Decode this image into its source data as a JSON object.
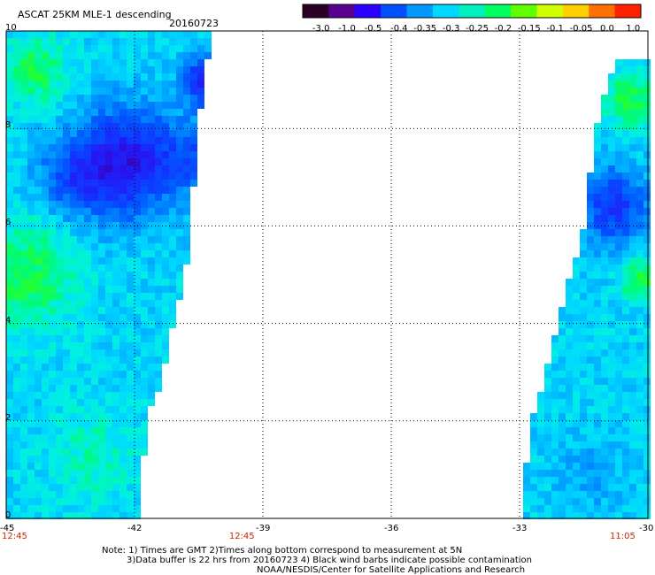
{
  "header": {
    "title": "ASCAT 25KM MLE-1 descending",
    "date": "20160723"
  },
  "colorbar": {
    "labels": [
      "-3.0",
      "-1.0",
      "-0.5",
      "-0.4",
      "-0.35",
      "-0.3",
      "-0.25",
      "-0.2",
      "-0.15",
      "-0.1",
      "-0.05",
      "0.0",
      "1.0"
    ],
    "colors": [
      "#2a0024",
      "#5a0090",
      "#2a00ff",
      "#0050ff",
      "#0098ff",
      "#00d8ff",
      "#00f0c0",
      "#00ff60",
      "#60ff00",
      "#d0ff00",
      "#ffd000",
      "#ff7000",
      "#ff2000"
    ]
  },
  "map": {
    "x_ticks": [
      "-45",
      "-42",
      "-39",
      "-36",
      "-33",
      "-30"
    ],
    "y_ticks": [
      "0",
      "2",
      "4",
      "6",
      "8",
      "10"
    ],
    "lon_range": [
      -45,
      -30
    ],
    "lat_range": [
      0,
      10
    ],
    "grid": true,
    "time_labels": [
      {
        "text": "12:45",
        "lon": -45
      },
      {
        "text": "12:45",
        "lon": -39.5
      },
      {
        "text": "11:05",
        "lon": -30.6
      }
    ],
    "left_swath": {
      "east_edge_lon": [
        -40.2,
        -40.5,
        -40.6,
        -40.7,
        -40.8,
        -41.1,
        -41.3,
        -41.7,
        -41.9
      ],
      "east_edge_lat": [
        10,
        8,
        7,
        6,
        5,
        4,
        3,
        2,
        0
      ],
      "blobs": [
        {
          "lon": -42.2,
          "lat": 7.3,
          "r": 1.1,
          "value": -0.5
        },
        {
          "lon": -43.5,
          "lat": 7.0,
          "r": 0.8,
          "value": -0.4
        },
        {
          "lon": -40.5,
          "lat": 7.4,
          "r": 0.8,
          "value": -0.4
        },
        {
          "lon": -44.5,
          "lat": 5.0,
          "r": 1.1,
          "value": -0.2
        },
        {
          "lon": -44.3,
          "lat": 9.2,
          "r": 0.7,
          "value": -0.2
        },
        {
          "lon": -43.0,
          "lat": 1.3,
          "r": 1.0,
          "value": -0.25
        },
        {
          "lon": -40.3,
          "lat": 9.0,
          "r": 0.5,
          "value": -0.5
        }
      ],
      "base_value": -0.3
    },
    "right_swath": {
      "west_edge_lon": [
        -30.6,
        -31.2,
        -31.5,
        -31.8,
        -32.1,
        -32.4,
        -32.7,
        -33.0
      ],
      "west_edge_lat": [
        10,
        8,
        6,
        5,
        4,
        3,
        2,
        0
      ],
      "blobs": [
        {
          "lon": -30.8,
          "lat": 6.4,
          "r": 0.8,
          "value": -0.45
        },
        {
          "lon": -30.4,
          "lat": 8.6,
          "r": 0.6,
          "value": -0.2
        },
        {
          "lon": -30.2,
          "lat": 4.9,
          "r": 0.4,
          "value": -0.18
        },
        {
          "lon": -31.3,
          "lat": 0.9,
          "r": 0.8,
          "value": -0.34
        }
      ],
      "base_value": -0.3
    }
  },
  "notes": {
    "line1": "Note: 1) Times are GMT 2)Times along bottom correspond to measurement at 5N",
    "line2": "3)Data buffer is 22 hrs from 20160723 4) Black wind barbs indicate possible contamination",
    "line3": "NOAA/NESDIS/Center for Satellite Applications and Research"
  }
}
